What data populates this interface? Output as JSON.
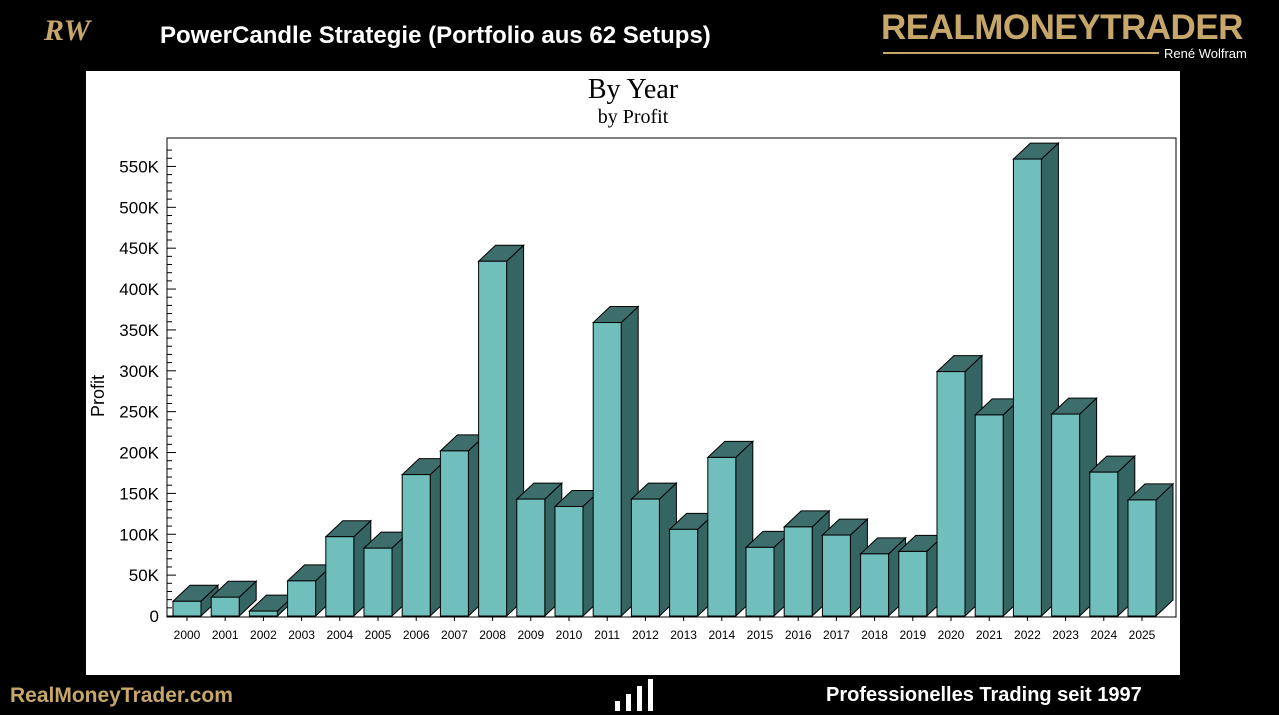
{
  "header": {
    "logo_text": "RW",
    "title": "PowerCandle Strategie (Portfolio aus 62 Setups)",
    "brand_name": "REALMONEYTRADER",
    "brand_sub": "René Wolfram"
  },
  "footer": {
    "left_text": "RealMoneyTrader.com",
    "right_text": "Professionelles  Trading seit 1997",
    "icon": "bar-chart-icon"
  },
  "colors": {
    "background": "#000000",
    "gold": "#c7a66a",
    "bar_front": "#70bfbd",
    "bar_side": "#356563",
    "bar_top": "#3d6e6c"
  },
  "chart_data": {
    "type": "bar",
    "style": "3d",
    "title": "By Year",
    "subtitle": "by Profit",
    "xlabel": "",
    "ylabel": "Profit",
    "ylim": [
      0,
      575000
    ],
    "y_ticks": [
      0,
      50000,
      100000,
      150000,
      200000,
      250000,
      300000,
      350000,
      400000,
      450000,
      500000,
      550000
    ],
    "y_tick_labels": [
      "0",
      "50K",
      "100K",
      "150K",
      "200K",
      "250K",
      "300K",
      "350K",
      "400K",
      "450K",
      "500K",
      "550K"
    ],
    "categories": [
      "2000",
      "2001",
      "2002",
      "2003",
      "2004",
      "2005",
      "2006",
      "2007",
      "2008",
      "2009",
      "2010",
      "2011",
      "2012",
      "2013",
      "2014",
      "2015",
      "2016",
      "2017",
      "2018",
      "2019",
      "2020",
      "2021",
      "2022",
      "2023",
      "2024",
      "2025"
    ],
    "values": [
      18000,
      23000,
      6000,
      43000,
      97000,
      83000,
      173000,
      202000,
      434000,
      143000,
      134000,
      359000,
      143000,
      106000,
      194000,
      84000,
      109000,
      99000,
      76000,
      79000,
      299000,
      246000,
      559000,
      247000,
      176000,
      142000
    ],
    "grid": false,
    "legend": "none"
  }
}
